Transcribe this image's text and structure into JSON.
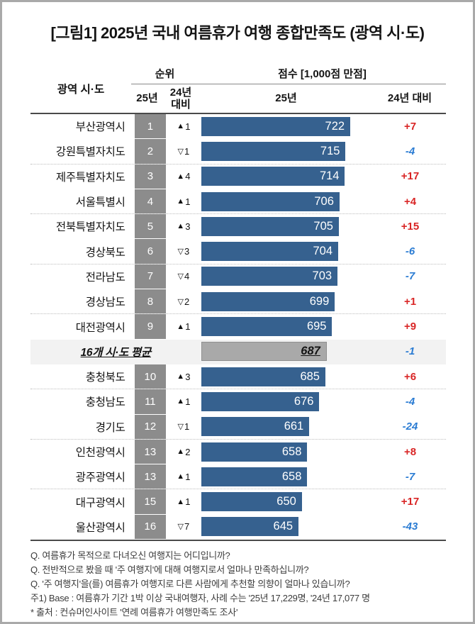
{
  "title": "[그림1] 2025년 국내 여름휴가 여행 종합만족도 (광역 시·도)",
  "header": {
    "region": "광역 시·도",
    "rank_group": "순위",
    "score_group": "점수 [1,000점 만점]",
    "rank_y25": "25년",
    "rank_vs24": "24년 대비",
    "score_y25": "25년",
    "score_vs24": "24년 대비"
  },
  "chart_data": {
    "type": "bar",
    "orientation": "horizontal",
    "title": "2025년 국내 여름휴가 여행 종합만족도 (광역 시·도)",
    "value_axis": {
      "min": 500,
      "max": 750,
      "full_scale": 1000
    },
    "glyphs": {
      "up": "▲",
      "down": "▽"
    },
    "dotted_after_rows": [
      1,
      3,
      5,
      7,
      10,
      12,
      14
    ],
    "rows": [
      {
        "region": "부산광역시",
        "rank": "1",
        "rank_change_dir": "up",
        "rank_change_amount": "1",
        "score": 722,
        "score_change": "+7"
      },
      {
        "region": "강원특별자치도",
        "rank": "2",
        "rank_change_dir": "down",
        "rank_change_amount": "1",
        "score": 715,
        "score_change": "-4"
      },
      {
        "region": "제주특별자치도",
        "rank": "3",
        "rank_change_dir": "up",
        "rank_change_amount": "4",
        "score": 714,
        "score_change": "+17"
      },
      {
        "region": "서울특별시",
        "rank": "4",
        "rank_change_dir": "up",
        "rank_change_amount": "1",
        "score": 706,
        "score_change": "+4"
      },
      {
        "region": "전북특별자치도",
        "rank": "5",
        "rank_change_dir": "up",
        "rank_change_amount": "3",
        "score": 705,
        "score_change": "+15"
      },
      {
        "region": "경상북도",
        "rank": "6",
        "rank_change_dir": "down",
        "rank_change_amount": "3",
        "score": 704,
        "score_change": "-6"
      },
      {
        "region": "전라남도",
        "rank": "7",
        "rank_change_dir": "down",
        "rank_change_amount": "4",
        "score": 703,
        "score_change": "-7"
      },
      {
        "region": "경상남도",
        "rank": "8",
        "rank_change_dir": "down",
        "rank_change_amount": "2",
        "score": 699,
        "score_change": "+1"
      },
      {
        "region": "대전광역시",
        "rank": "9",
        "rank_change_dir": "up",
        "rank_change_amount": "1",
        "score": 695,
        "score_change": "+9"
      },
      {
        "region": "16개 시·도 평균",
        "is_average": true,
        "score": 687,
        "score_change": "-1"
      },
      {
        "region": "충청북도",
        "rank": "10",
        "rank_change_dir": "up",
        "rank_change_amount": "3",
        "score": 685,
        "score_change": "+6"
      },
      {
        "region": "충청남도",
        "rank": "11",
        "rank_change_dir": "up",
        "rank_change_amount": "1",
        "score": 676,
        "score_change": "-4"
      },
      {
        "region": "경기도",
        "rank": "12",
        "rank_change_dir": "down",
        "rank_change_amount": "1",
        "score": 661,
        "score_change": "-24"
      },
      {
        "region": "인천광역시",
        "rank": "13",
        "rank_change_dir": "up",
        "rank_change_amount": "2",
        "score": 658,
        "score_change": "+8"
      },
      {
        "region": "광주광역시",
        "rank": "13",
        "rank_change_dir": "up",
        "rank_change_amount": "1",
        "score": 658,
        "score_change": "-7"
      },
      {
        "region": "대구광역시",
        "rank": "15",
        "rank_change_dir": "up",
        "rank_change_amount": "1",
        "score": 650,
        "score_change": "+17"
      },
      {
        "region": "울산광역시",
        "rank": "16",
        "rank_change_dir": "down",
        "rank_change_amount": "7",
        "score": 645,
        "score_change": "-43"
      }
    ]
  },
  "footnotes": [
    "Q. 여름휴가 목적으로 다녀오신 여행지는 어디입니까?",
    "Q. 전반적으로 봤을 때 '주 여행지'에 대해 여행지로서 얼마나 만족하십니까?",
    "Q. '주 여행지'을(를) 여름휴가 여행지로 다른 사람에게 추천할 의향이 얼마나 있습니까?",
    "주1) Base : 여름휴가 기간 1박 이상 국내여행자, 사례 수는 '25년 17,229명, '24년 17,077 명",
    "* 출처 : 컨슈머인사이트 '연례 여름휴가 여행만족도 조사'"
  ],
  "colors": {
    "bar_blue": "#36618f",
    "bar_gray": "#a9a9a9",
    "rank_band": "#8c8c8c",
    "avg_bg": "#f2f2f2",
    "positive": "#d92525",
    "negative": "#2b7cd3",
    "line_dark": "#4a4a4a",
    "dotted": "#bdbdbd",
    "frame": "#a9a9a9",
    "text": "#141414",
    "footnote": "#3c3c3c"
  }
}
